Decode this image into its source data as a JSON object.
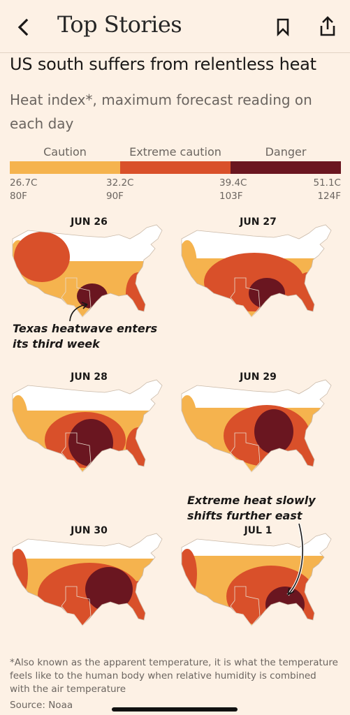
{
  "nav": {
    "title": "Top Stories",
    "back_icon": "chevron-left-icon",
    "bookmark_icon": "bookmark-icon",
    "share_icon": "share-icon"
  },
  "article": {
    "headline": "US south suffers from relentless heat",
    "subhead": "Heat index*, maximum forecast reading on each day"
  },
  "legend": {
    "categories": [
      "Caution",
      "Extreme caution",
      "Danger"
    ],
    "colors": [
      "#f5b34e",
      "#d9502a",
      "#6a1620"
    ],
    "ticks": [
      {
        "c": "26.7C",
        "f": "80F"
      },
      {
        "c": "32.2C",
        "f": "90F"
      },
      {
        "c": "39.4C",
        "f": "103F"
      },
      {
        "c": "51.1C",
        "f": "124F"
      }
    ]
  },
  "maps": [
    {
      "date": "JUN 26"
    },
    {
      "date": "JUN 27"
    },
    {
      "date": "JUN 28"
    },
    {
      "date": "JUN 29"
    },
    {
      "date": "JUN 30"
    },
    {
      "date": "JUL 1"
    }
  ],
  "annotations": {
    "texas_line1": "Texas heatwave enters",
    "texas_line2": "its third week",
    "east_line1": "Extreme heat slowly",
    "east_line2": "shifts further east"
  },
  "footer": {
    "footnote": "*Also known as the apparent temperature, it is what the temperature feels like to the human body when relative humidity is combined with the air temperature",
    "source": "Source: Noaa"
  }
}
